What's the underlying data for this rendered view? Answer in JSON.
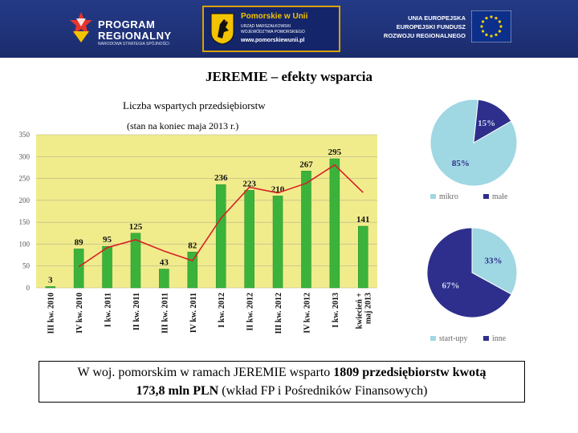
{
  "header": {
    "left_logo": {
      "line1": "PROGRAM",
      "line2": "REGIONALNY",
      "sub": "NARODOWA STRATEGIA SPÓJNOŚCI"
    },
    "center_logo": {
      "title": "Pomorskie w Unii",
      "line1": "URZĄD MARSZAŁKOWSKI",
      "line2": "WOJEWÓDZTWA POMORSKIEGO",
      "url": "www.pomorskiewunii.pl"
    },
    "right_logo": {
      "line1": "UNIA EUROPEJSKA",
      "line2": "EUROPEJSKI FUNDUSZ",
      "line3": "ROZWOJU REGIONALNEGO"
    }
  },
  "slide_title": "JEREMIE – efekty wsparcia",
  "colors": {
    "bar": "#3bb33b",
    "plot_bg": "#f0ec8c",
    "trend": "#d81f26",
    "pie_light": "#9fd7e3",
    "pie_dark": "#2e2f8c",
    "header_bg": "#1f3278"
  },
  "chart_data": [
    {
      "type": "bar",
      "subtitle1": "Liczba wspartych przedsiębiorstw",
      "subtitle2": "(stan na koniec maja 2013 r.)",
      "categories": [
        "III kw. 2010",
        "IV kw. 2010",
        "I kw. 2011",
        "II kw. 2011",
        "III kw. 2011",
        "IV kw. 2011",
        "I kw. 2012",
        "II kw. 2012",
        "III kw. 2012",
        "IV kw. 2012",
        "I kw. 2013",
        "kwiecień + maj 2013"
      ],
      "values": [
        3,
        89,
        95,
        125,
        43,
        82,
        236,
        223,
        210,
        267,
        295,
        141
      ],
      "trend_line": [
        null,
        48,
        92,
        110,
        84,
        62,
        159,
        230,
        217,
        239,
        281,
        218
      ],
      "ylim": [
        0,
        350
      ],
      "yticks": [
        "0",
        "50",
        "100",
        "150",
        "200",
        "250",
        "300",
        "350"
      ],
      "grid": true
    },
    {
      "type": "pie",
      "labels": [
        "mikro",
        "małe"
      ],
      "values": [
        85,
        15
      ],
      "value_labels": [
        "85%",
        "15%"
      ],
      "legend_position": "bottom"
    },
    {
      "type": "pie",
      "labels": [
        "start-upy",
        "inne"
      ],
      "values": [
        33,
        67
      ],
      "value_labels": [
        "33%",
        "67%"
      ],
      "legend_position": "bottom"
    }
  ],
  "summary": {
    "part1": "W woj. pomorskim w ramach JEREMIE wsparto ",
    "part2_bold": "1809 przedsiębiorstw kwotą",
    "part3_bold": "173,8 mln PLN",
    "part4": " (wkład FP i Pośredników Finansowych)"
  }
}
